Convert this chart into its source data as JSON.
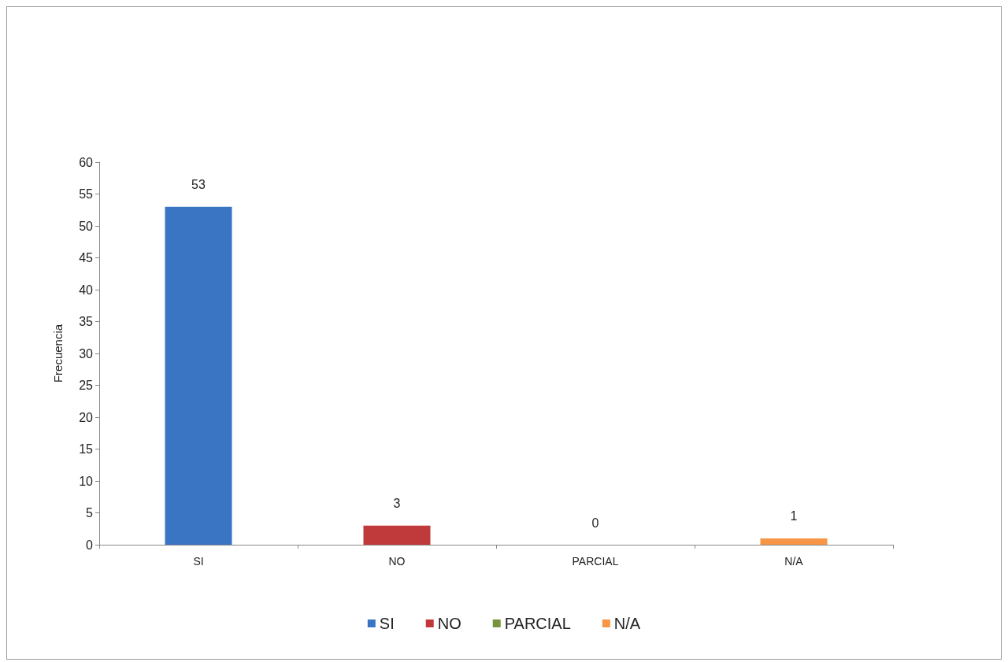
{
  "chart_data": {
    "type": "bar",
    "ylabel": "Frecuencia",
    "categories": [
      "SI",
      "NO",
      "PARCIAL",
      "N/A"
    ],
    "series": [
      {
        "name": "SI",
        "color": "#3a75c4",
        "values": [
          53,
          null,
          null,
          null
        ]
      },
      {
        "name": "NO",
        "color": "#c0393b",
        "values": [
          null,
          3,
          null,
          null
        ]
      },
      {
        "name": "PARCIAL",
        "color": "#77933c",
        "values": [
          null,
          null,
          0,
          null
        ]
      },
      {
        "name": "N/A",
        "color": "#f79646",
        "values": [
          null,
          null,
          null,
          1
        ]
      }
    ],
    "stacked": true,
    "ylim": [
      0,
      60
    ],
    "yticks": [
      0,
      5,
      10,
      15,
      20,
      25,
      30,
      35,
      40,
      45,
      50,
      55,
      60
    ],
    "grid": false,
    "legend": "bottom",
    "data_labels": true
  }
}
